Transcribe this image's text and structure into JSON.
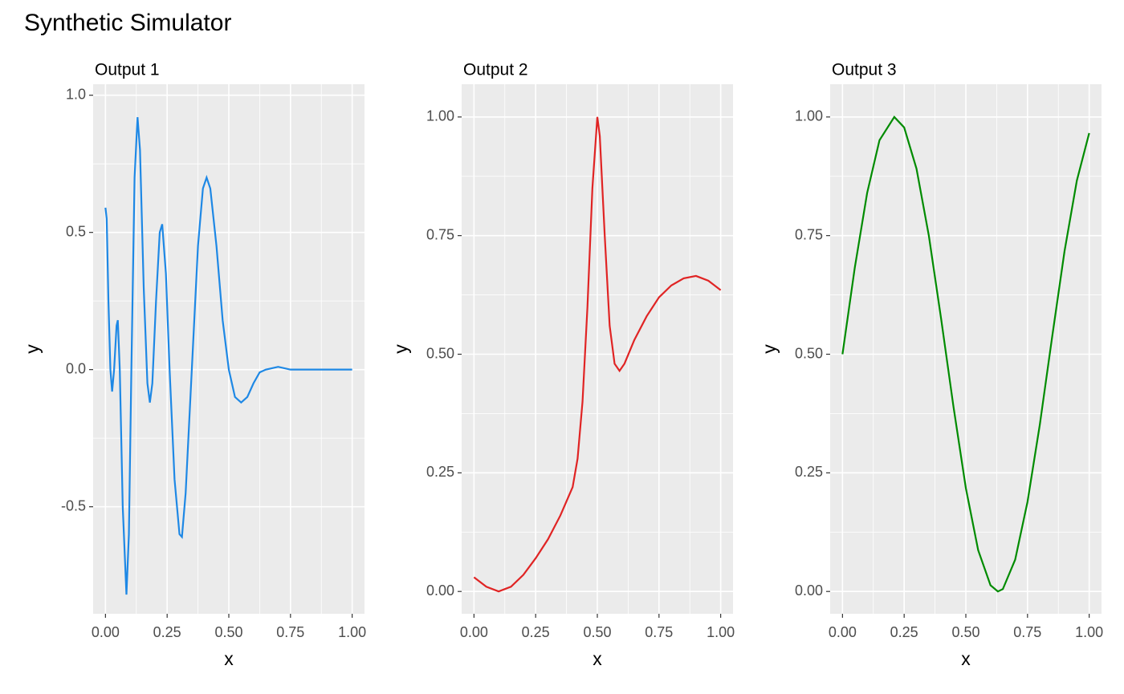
{
  "title": "Synthetic Simulator",
  "chart_data": [
    {
      "type": "line",
      "title": "Output 1",
      "x_label": "x",
      "y_label": "y",
      "color": "#1E88E5",
      "grid": true,
      "minor_grid": true,
      "xlim": [
        -0.05,
        1.05
      ],
      "ylim": [
        -0.89,
        1.04
      ],
      "xticks": [
        {
          "value": 0,
          "label": "0.00"
        },
        {
          "value": 0.25,
          "label": "0.25"
        },
        {
          "value": 0.5,
          "label": "0.50"
        },
        {
          "value": 0.75,
          "label": "0.75"
        },
        {
          "value": 1,
          "label": "1.00"
        }
      ],
      "yticks": [
        -0.5,
        {
          "value": 0,
          "label": "0.0"
        },
        0.5,
        {
          "value": 1,
          "label": "1.0"
        }
      ],
      "x": [
        0,
        0.005,
        0.012,
        0.02,
        0.027,
        0.035,
        0.045,
        0.05,
        0.058,
        0.07,
        0.085,
        0.095,
        0.105,
        0.118,
        0.13,
        0.14,
        0.155,
        0.17,
        0.18,
        0.19,
        0.205,
        0.22,
        0.23,
        0.245,
        0.26,
        0.28,
        0.3,
        0.31,
        0.325,
        0.35,
        0.375,
        0.395,
        0.41,
        0.425,
        0.45,
        0.475,
        0.5,
        0.525,
        0.55,
        0.575,
        0.6,
        0.625,
        0.65,
        0.7,
        0.75,
        0.8,
        1.0
      ],
      "values": [
        0.59,
        0.55,
        0.25,
        0.0,
        -0.08,
        0.0,
        0.16,
        0.18,
        0.0,
        -0.5,
        -0.82,
        -0.6,
        0.0,
        0.7,
        0.92,
        0.8,
        0.3,
        -0.05,
        -0.12,
        -0.05,
        0.25,
        0.5,
        0.53,
        0.35,
        0.0,
        -0.4,
        -0.6,
        -0.61,
        -0.45,
        0.0,
        0.45,
        0.66,
        0.7,
        0.66,
        0.45,
        0.18,
        0.0,
        -0.1,
        -0.12,
        -0.1,
        -0.05,
        -0.01,
        0.0,
        0.01,
        0.0,
        0.0,
        0.0
      ]
    },
    {
      "type": "line",
      "title": "Output 2",
      "x_label": "x",
      "y_label": "y",
      "color": "#E02424",
      "grid": true,
      "minor_grid": true,
      "xlim": [
        -0.05,
        1.05
      ],
      "ylim": [
        -0.047,
        1.069
      ],
      "xticks": [
        {
          "value": 0,
          "label": "0.00"
        },
        {
          "value": 0.25,
          "label": "0.25"
        },
        {
          "value": 0.5,
          "label": "0.50"
        },
        {
          "value": 0.75,
          "label": "0.75"
        },
        {
          "value": 1,
          "label": "1.00"
        }
      ],
      "yticks": [
        {
          "value": 0,
          "label": "0.00"
        },
        0.25,
        {
          "value": 0.5,
          "label": "0.50"
        },
        0.75,
        {
          "value": 1,
          "label": "1.00"
        }
      ],
      "x": [
        0,
        0.05,
        0.1,
        0.15,
        0.2,
        0.25,
        0.3,
        0.35,
        0.4,
        0.42,
        0.44,
        0.46,
        0.48,
        0.5,
        0.51,
        0.53,
        0.55,
        0.57,
        0.59,
        0.61,
        0.65,
        0.7,
        0.75,
        0.8,
        0.85,
        0.9,
        0.95,
        1.0
      ],
      "values": [
        0.03,
        0.01,
        0.0,
        0.01,
        0.035,
        0.07,
        0.11,
        0.16,
        0.22,
        0.28,
        0.4,
        0.6,
        0.85,
        1.0,
        0.96,
        0.75,
        0.56,
        0.48,
        0.465,
        0.48,
        0.53,
        0.58,
        0.62,
        0.645,
        0.66,
        0.665,
        0.655,
        0.635
      ]
    },
    {
      "type": "line",
      "title": "Output 3",
      "x_label": "x",
      "y_label": "y",
      "color": "#008B00",
      "grid": true,
      "minor_grid": true,
      "xlim": [
        -0.05,
        1.05
      ],
      "ylim": [
        -0.047,
        1.069
      ],
      "xticks": [
        {
          "value": 0,
          "label": "0.00"
        },
        {
          "value": 0.25,
          "label": "0.25"
        },
        {
          "value": 0.5,
          "label": "0.50"
        },
        {
          "value": 0.75,
          "label": "0.75"
        },
        {
          "value": 1,
          "label": "1.00"
        }
      ],
      "yticks": [
        {
          "value": 0,
          "label": "0.00"
        },
        0.25,
        {
          "value": 0.5,
          "label": "0.50"
        },
        0.75,
        {
          "value": 1,
          "label": "1.00"
        }
      ],
      "x": [
        0,
        0.05,
        0.1,
        0.15,
        0.21,
        0.25,
        0.3,
        0.35,
        0.4,
        0.45,
        0.5,
        0.55,
        0.6,
        0.63,
        0.65,
        0.7,
        0.75,
        0.8,
        0.85,
        0.9,
        0.95,
        1.0
      ],
      "values": [
        0.5,
        0.683,
        0.84,
        0.951,
        1.0,
        0.978,
        0.891,
        0.75,
        0.574,
        0.389,
        0.218,
        0.087,
        0.013,
        0.0,
        0.005,
        0.067,
        0.189,
        0.352,
        0.537,
        0.717,
        0.866,
        0.966
      ]
    }
  ]
}
